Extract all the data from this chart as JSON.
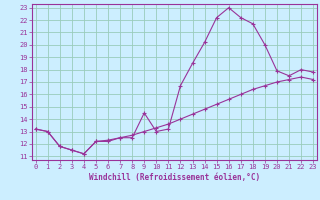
{
  "xlabel": "Windchill (Refroidissement éolien,°C)",
  "bg_color": "#cceeff",
  "grid_color": "#99ccbb",
  "line_color": "#993399",
  "xlim": [
    0,
    23
  ],
  "ylim": [
    11,
    23
  ],
  "xticks": [
    0,
    1,
    2,
    3,
    4,
    5,
    6,
    7,
    8,
    9,
    10,
    11,
    12,
    13,
    14,
    15,
    16,
    17,
    18,
    19,
    20,
    21,
    22,
    23
  ],
  "yticks": [
    11,
    12,
    13,
    14,
    15,
    16,
    17,
    18,
    19,
    20,
    21,
    22,
    23
  ],
  "curve1_x": [
    0,
    1,
    2,
    3,
    4,
    5,
    6,
    7,
    8,
    9,
    10,
    11,
    12,
    13,
    14,
    15,
    16,
    17,
    18,
    19,
    20,
    21,
    22,
    23
  ],
  "curve1_y": [
    13.2,
    13.0,
    11.8,
    11.5,
    11.2,
    12.2,
    12.2,
    12.5,
    12.5,
    14.5,
    13.0,
    13.2,
    16.7,
    18.5,
    20.2,
    22.2,
    23.0,
    22.2,
    21.7,
    20.0,
    17.9,
    17.5,
    18.0,
    17.8
  ],
  "curve2_x": [
    0,
    1,
    2,
    3,
    4,
    5,
    6,
    7,
    8,
    9,
    10,
    11,
    12,
    13,
    14,
    15,
    16,
    17,
    18,
    19,
    20,
    21,
    22,
    23
  ],
  "curve2_y": [
    13.2,
    13.0,
    11.8,
    11.5,
    11.2,
    12.2,
    12.3,
    12.5,
    12.7,
    13.0,
    13.3,
    13.6,
    14.0,
    14.4,
    14.8,
    15.2,
    15.6,
    16.0,
    16.4,
    16.7,
    17.0,
    17.2,
    17.4,
    17.2
  ],
  "tick_fontsize": 5.0,
  "xlabel_fontsize": 5.5,
  "marker_size": 3.0
}
